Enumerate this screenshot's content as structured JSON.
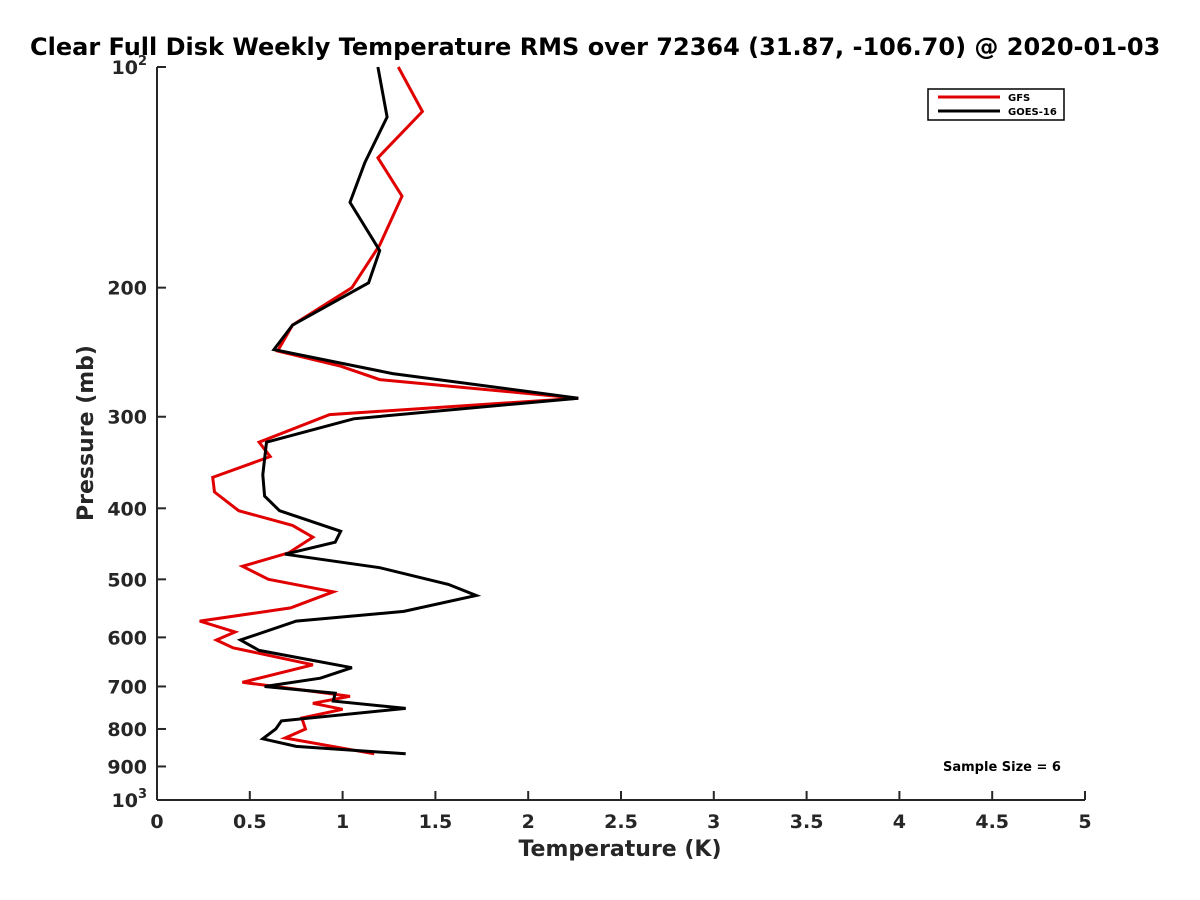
{
  "chart_data": {
    "type": "line",
    "title": "Clear Full Disk Weekly Temperature RMS over 72364 (31.87, -106.70) @ 2020-01-03",
    "xlabel": "Temperature (K)",
    "ylabel": "Pressure (mb)",
    "xlim": [
      0,
      5
    ],
    "ylim": [
      100,
      1000
    ],
    "y_scale": "log",
    "y_reversed": true,
    "xticks": [
      0,
      0.5,
      1,
      1.5,
      2,
      2.5,
      3,
      3.5,
      4,
      4.5,
      5
    ],
    "xtick_labels": [
      "0",
      "0.5",
      "1",
      "1.5",
      "2",
      "2.5",
      "3",
      "3.5",
      "4",
      "4.5",
      "5"
    ],
    "yticks": [
      100,
      200,
      300,
      400,
      500,
      600,
      700,
      800,
      900,
      1000
    ],
    "ytick_labels": [
      {
        "base": "10",
        "exp": "2"
      },
      {
        "base": "200",
        "exp": ""
      },
      {
        "base": "300",
        "exp": ""
      },
      {
        "base": "400",
        "exp": ""
      },
      {
        "base": "500",
        "exp": ""
      },
      {
        "base": "600",
        "exp": ""
      },
      {
        "base": "700",
        "exp": ""
      },
      {
        "base": "800",
        "exp": ""
      },
      {
        "base": "900",
        "exp": ""
      },
      {
        "base": "10",
        "exp": "3"
      }
    ],
    "grid": false,
    "legend_position": "top-right",
    "annotation": "Sample Size = 6",
    "series": [
      {
        "name": "GFS",
        "color": "#e00000",
        "points": [
          [
            1.3,
            100
          ],
          [
            1.43,
            115
          ],
          [
            1.19,
            133
          ],
          [
            1.32,
            150
          ],
          [
            1.2,
            175
          ],
          [
            1.05,
            200
          ],
          [
            0.73,
            225
          ],
          [
            0.65,
            244
          ],
          [
            0.99,
            256
          ],
          [
            1.2,
            267
          ],
          [
            2.27,
            283
          ],
          [
            0.93,
            298
          ],
          [
            0.55,
            325
          ],
          [
            0.61,
            340
          ],
          [
            0.3,
            363
          ],
          [
            0.31,
            380
          ],
          [
            0.44,
            403
          ],
          [
            0.73,
            422
          ],
          [
            0.84,
            438
          ],
          [
            0.71,
            460
          ],
          [
            0.46,
            480
          ],
          [
            0.6,
            500
          ],
          [
            0.95,
            520
          ],
          [
            0.72,
            547
          ],
          [
            0.23,
            570
          ],
          [
            0.42,
            590
          ],
          [
            0.32,
            605
          ],
          [
            0.41,
            620
          ],
          [
            0.84,
            654
          ],
          [
            0.46,
            691
          ],
          [
            0.84,
            711
          ],
          [
            1.04,
            722
          ],
          [
            0.84,
            738
          ],
          [
            1.0,
            752
          ],
          [
            0.78,
            773
          ],
          [
            0.8,
            800
          ],
          [
            0.69,
            823
          ],
          [
            1.17,
            865
          ]
        ]
      },
      {
        "name": "GOES-16",
        "color": "#000000",
        "points": [
          [
            1.19,
            100
          ],
          [
            1.24,
            117
          ],
          [
            1.12,
            135
          ],
          [
            1.04,
            153
          ],
          [
            1.2,
            178
          ],
          [
            1.14,
            197
          ],
          [
            0.73,
            225
          ],
          [
            0.63,
            243
          ],
          [
            1.27,
            262
          ],
          [
            2.27,
            283
          ],
          [
            1.06,
            302
          ],
          [
            0.59,
            325
          ],
          [
            0.57,
            360
          ],
          [
            0.58,
            385
          ],
          [
            0.66,
            403
          ],
          [
            0.99,
            430
          ],
          [
            0.96,
            445
          ],
          [
            0.69,
            462
          ],
          [
            1.2,
            482
          ],
          [
            1.57,
            508
          ],
          [
            1.72,
            526
          ],
          [
            1.33,
            553
          ],
          [
            0.75,
            570
          ],
          [
            0.45,
            605
          ],
          [
            0.55,
            625
          ],
          [
            1.05,
            660
          ],
          [
            0.88,
            682
          ],
          [
            0.58,
            700
          ],
          [
            0.96,
            715
          ],
          [
            0.95,
            733
          ],
          [
            1.34,
            750
          ],
          [
            0.67,
            780
          ],
          [
            0.64,
            800
          ],
          [
            0.57,
            825
          ],
          [
            0.75,
            845
          ],
          [
            1.34,
            865
          ]
        ]
      }
    ]
  }
}
